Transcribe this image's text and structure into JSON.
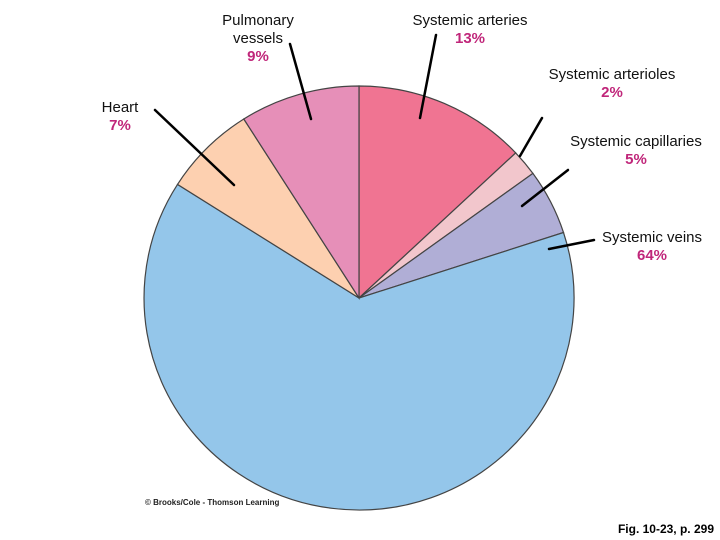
{
  "chart_data": {
    "type": "pie",
    "title": "",
    "slices": [
      {
        "label": "Systemic arteries",
        "value": 13,
        "value_label": "13%",
        "color": "#f07492"
      },
      {
        "label": "Systemic arterioles",
        "value": 2,
        "value_label": "2%",
        "color": "#f2c6cc"
      },
      {
        "label": "Systemic capillaries",
        "value": 5,
        "value_label": "5%",
        "color": "#b0aed6"
      },
      {
        "label": "Systemic veins",
        "value": 64,
        "value_label": "64%",
        "color": "#94c6ea"
      },
      {
        "label": "Heart",
        "value": 7,
        "value_label": "7%",
        "color": "#fdd0b0"
      },
      {
        "label": "Pulmonary\nvessels",
        "value": 9,
        "value_label": "9%",
        "color": "#e68fb8"
      }
    ]
  },
  "footer": {
    "copyright": "© Brooks/Cole - Thomson Learning",
    "figure_ref": "Fig. 10-23, p. 299"
  }
}
